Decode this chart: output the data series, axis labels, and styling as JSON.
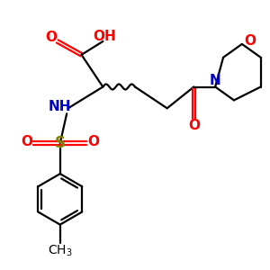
{
  "bg_color": "#ffffff",
  "bond_color": "#000000",
  "figsize": [
    3.0,
    3.0
  ],
  "dpi": 100,
  "colors": {
    "O": "#ff0000",
    "N": "#0000cd",
    "S": "#808000",
    "C": "#000000"
  },
  "lw": 1.6
}
